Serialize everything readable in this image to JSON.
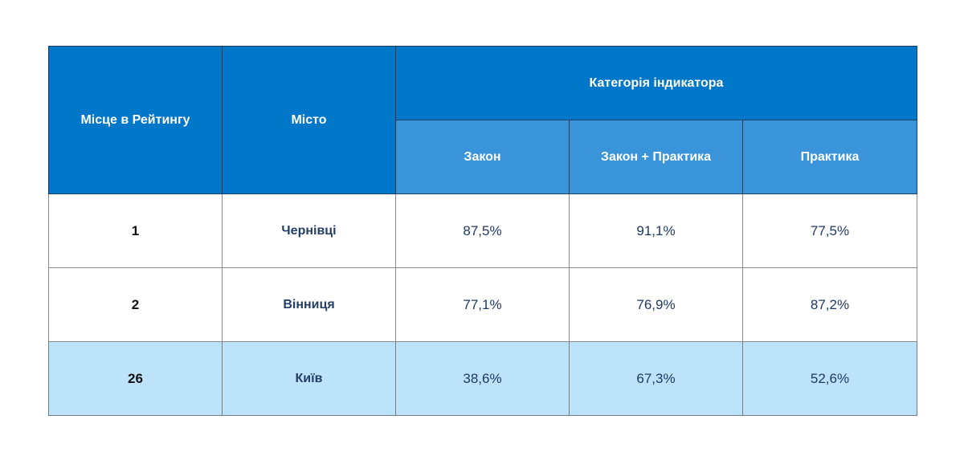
{
  "header": {
    "rank": "Місце в Рейтингу",
    "city": "Місто",
    "category": "Категорія індикатора",
    "subcolumns": [
      "Закон",
      "Закон + Практика",
      "Практика"
    ]
  },
  "rows": [
    {
      "rank": "1",
      "city": "Чернівці",
      "values": [
        "87,5%",
        "91,1%",
        "77,5%"
      ]
    },
    {
      "rank": "2",
      "city": "Вінниця",
      "values": [
        "77,1%",
        "76,9%",
        "87,2%"
      ]
    },
    {
      "rank": "26",
      "city": "Київ",
      "values": [
        "38,6%",
        "67,3%",
        "52,6%"
      ]
    }
  ],
  "colors": {
    "header": "#0077c8",
    "subheader": "#3a94d9",
    "highlight": "#bde3fb"
  }
}
